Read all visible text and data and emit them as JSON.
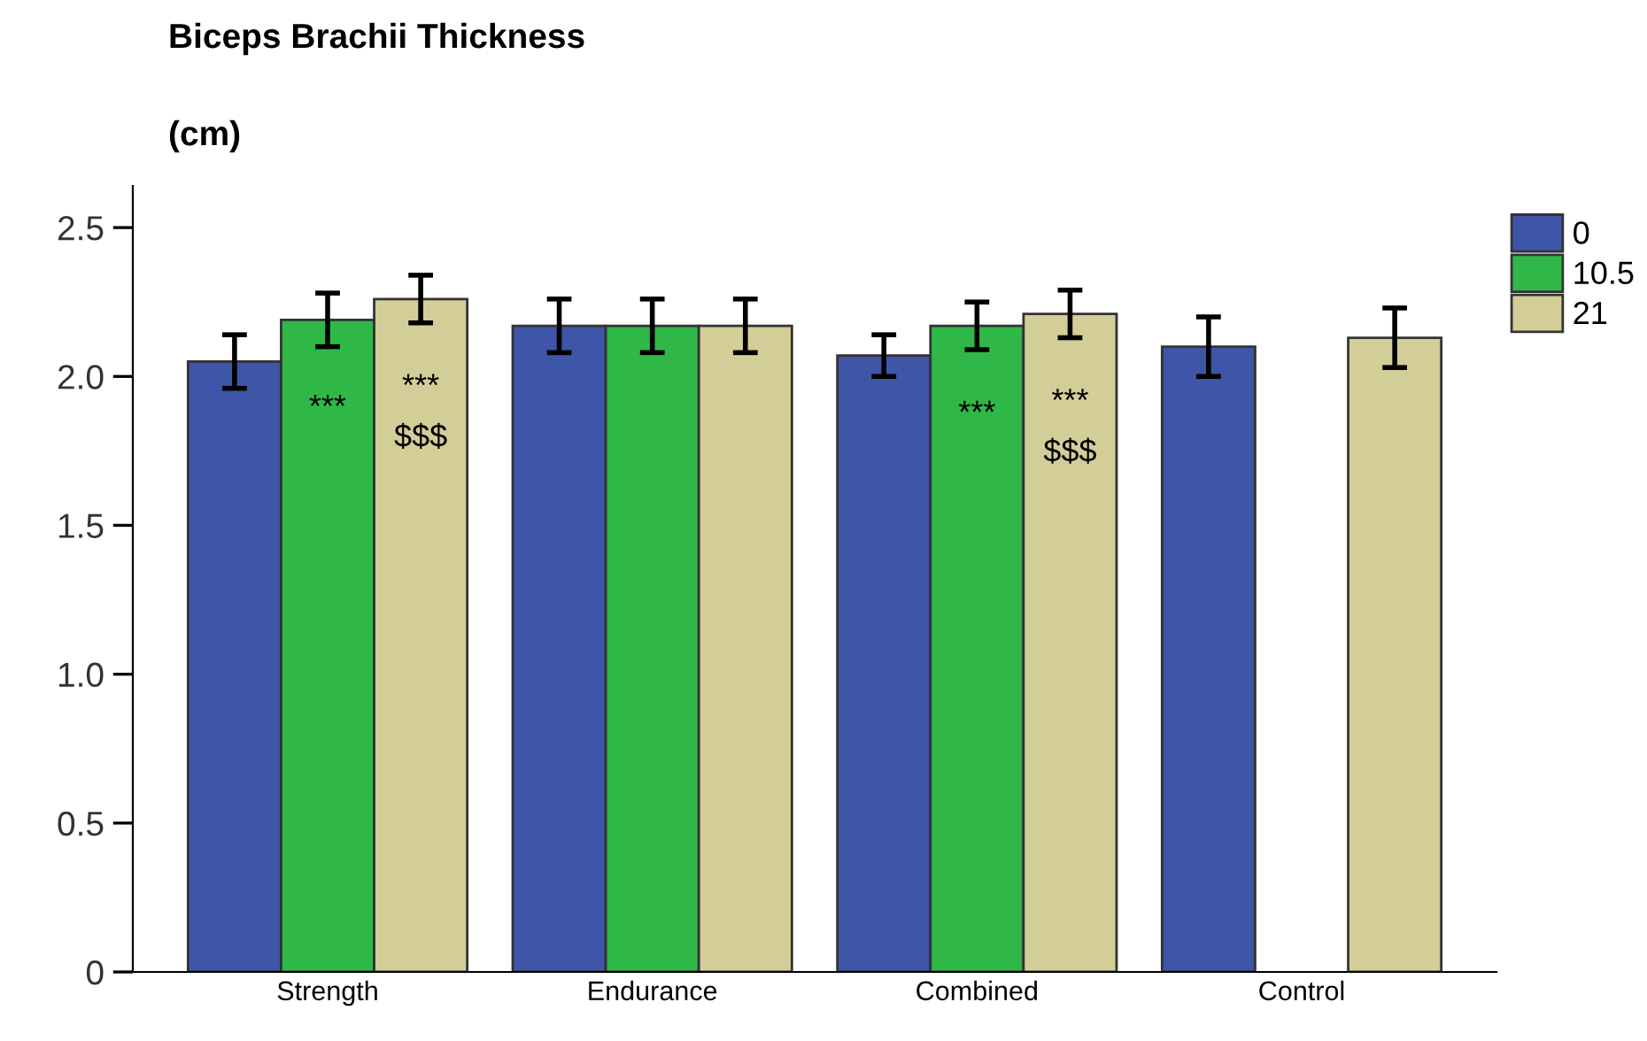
{
  "chart_data": {
    "type": "bar",
    "title": "Biceps Brachii Thickness",
    "subtitle": "(cm)",
    "categories": [
      "Strength",
      "Endurance",
      "Combined",
      "Control"
    ],
    "series": [
      {
        "name": "0",
        "color": "#3e55a8",
        "values": [
          2.05,
          2.17,
          2.07,
          2.1
        ],
        "errors": [
          0.09,
          0.09,
          0.07,
          0.1
        ]
      },
      {
        "name": "10.5",
        "color": "#2fb847",
        "values": [
          2.19,
          2.17,
          2.17,
          null
        ],
        "errors": [
          0.09,
          0.09,
          0.08,
          null
        ],
        "value_labels": [
          "***",
          null,
          "***",
          null
        ]
      },
      {
        "name": "21",
        "color": "#d3cd98",
        "values": [
          2.26,
          2.17,
          2.21,
          2.13
        ],
        "errors": [
          0.08,
          0.09,
          0.08,
          0.1
        ],
        "value_labels": [
          "***\n$$$",
          null,
          "***\n$$$",
          null
        ]
      }
    ],
    "ylim": [
      0,
      2.64
    ],
    "yticks": [
      {
        "value": 0,
        "label": "0"
      },
      {
        "value": 0.5,
        "label": "0.5"
      },
      {
        "value": 1.0,
        "label": "1.0"
      },
      {
        "value": 1.5,
        "label": "1.5"
      },
      {
        "value": 2.0,
        "label": "2.0"
      },
      {
        "value": 2.5,
        "label": "2.5"
      }
    ],
    "legend": "top right",
    "grid": false
  }
}
